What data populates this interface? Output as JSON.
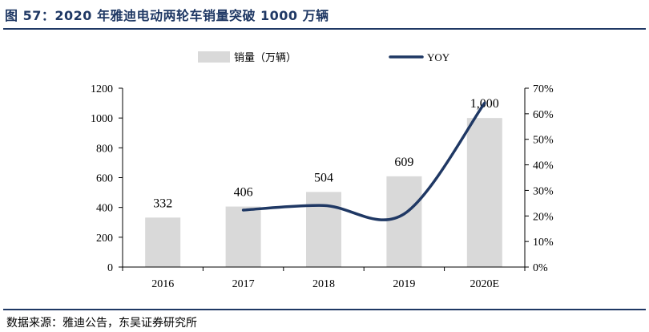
{
  "page": {
    "title": "图 57：2020 年雅迪电动两轮车销量突破 1000 万辆",
    "source": "数据来源：雅迪公告，东吴证券研究所"
  },
  "colors": {
    "bar": "#d9d9d9",
    "line": "#1f3864",
    "title": "#1f3864",
    "axis": "#000000"
  },
  "chart_data": {
    "type": "bar",
    "title": "",
    "categories": [
      "2016",
      "2017",
      "2018",
      "2019",
      "2020E"
    ],
    "series": [
      {
        "name": "销量（万辆）",
        "type": "bar",
        "axis": "left",
        "values": [
          332,
          406,
          504,
          609,
          1000
        ],
        "labels": [
          "332",
          "406",
          "504",
          "609",
          "1,000"
        ]
      },
      {
        "name": "YOY",
        "type": "line",
        "axis": "right",
        "values": [
          null,
          22.3,
          24.1,
          20.8,
          64.2
        ]
      }
    ],
    "ylim": [
      0,
      1200
    ],
    "y_ticks": [
      "0",
      "200",
      "400",
      "600",
      "800",
      "1000",
      "1200"
    ],
    "y2lim": [
      0,
      70
    ],
    "y2_ticks": [
      "0%",
      "10%",
      "20%",
      "30%",
      "40%",
      "50%",
      "60%",
      "70%"
    ],
    "legend": "top-center",
    "grid": false
  }
}
